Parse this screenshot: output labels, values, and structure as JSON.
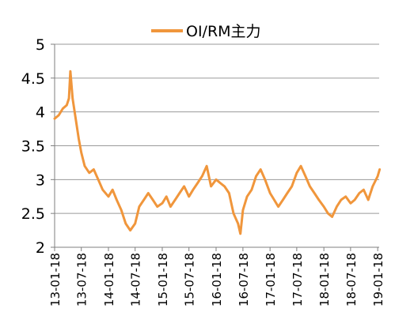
{
  "chart_data": {
    "type": "line",
    "title": "",
    "xlabel": "",
    "ylabel": "",
    "ylim": [
      2,
      5
    ],
    "y_ticks": [
      "2",
      "2.5",
      "3",
      "3.5",
      "4",
      "4.5",
      "5"
    ],
    "x_ticks": [
      "13-01-18",
      "13-07-18",
      "14-01-18",
      "14-07-18",
      "15-01-18",
      "15-07-18",
      "16-01-18",
      "16-07-18",
      "17-01-18",
      "17-07-18",
      "18-01-18",
      "18-07-18",
      "19-01-18"
    ],
    "grid": true,
    "legend": "top-center",
    "series": [
      {
        "name": "OI/RM主力",
        "color": "#F0963C",
        "x": [
          "13-01-18",
          "13-02-15",
          "13-03-15",
          "13-04-10",
          "13-04-25",
          "13-05-05",
          "13-05-20",
          "13-06-10",
          "13-07-01",
          "13-07-18",
          "13-08-10",
          "13-09-10",
          "13-10-10",
          "13-11-10",
          "13-12-10",
          "14-01-18",
          "14-02-15",
          "14-03-15",
          "14-04-15",
          "14-05-15",
          "14-06-15",
          "14-07-18",
          "14-08-15",
          "14-09-15",
          "14-10-15",
          "14-11-15",
          "14-12-15",
          "15-01-18",
          "15-02-15",
          "15-03-15",
          "15-04-15",
          "15-05-15",
          "15-06-15",
          "15-07-18",
          "15-08-15",
          "15-09-15",
          "15-10-15",
          "15-11-15",
          "15-12-15",
          "16-01-18",
          "16-02-15",
          "16-03-15",
          "16-04-15",
          "16-05-15",
          "16-06-15",
          "16-07-01",
          "16-07-18",
          "16-08-15",
          "16-09-15",
          "16-10-15",
          "16-11-15",
          "16-12-15",
          "17-01-18",
          "17-02-15",
          "17-03-15",
          "17-04-15",
          "17-05-15",
          "17-06-15",
          "17-07-18",
          "17-08-15",
          "17-09-15",
          "17-10-15",
          "17-11-15",
          "17-12-15",
          "18-01-18",
          "18-02-15",
          "18-03-15",
          "18-04-15",
          "18-05-15",
          "18-06-15",
          "18-07-18",
          "18-08-15",
          "18-09-15",
          "18-10-15",
          "18-11-15",
          "18-12-15",
          "19-01-18",
          "19-01-31"
        ],
        "values": [
          3.9,
          3.95,
          4.05,
          4.1,
          4.2,
          4.6,
          4.2,
          3.9,
          3.6,
          3.4,
          3.2,
          3.1,
          3.15,
          3.0,
          2.85,
          2.75,
          2.85,
          2.7,
          2.55,
          2.35,
          2.25,
          2.35,
          2.6,
          2.7,
          2.8,
          2.7,
          2.6,
          2.65,
          2.75,
          2.6,
          2.7,
          2.8,
          2.9,
          2.75,
          2.85,
          2.95,
          3.05,
          3.2,
          2.9,
          3.0,
          2.95,
          2.9,
          2.8,
          2.5,
          2.35,
          2.2,
          2.55,
          2.75,
          2.85,
          3.05,
          3.15,
          3.0,
          2.8,
          2.7,
          2.6,
          2.7,
          2.8,
          2.9,
          3.1,
          3.2,
          3.05,
          2.9,
          2.8,
          2.7,
          2.6,
          2.5,
          2.45,
          2.6,
          2.7,
          2.75,
          2.65,
          2.7,
          2.8,
          2.85,
          2.7,
          2.9,
          3.05,
          3.15
        ]
      }
    ]
  }
}
